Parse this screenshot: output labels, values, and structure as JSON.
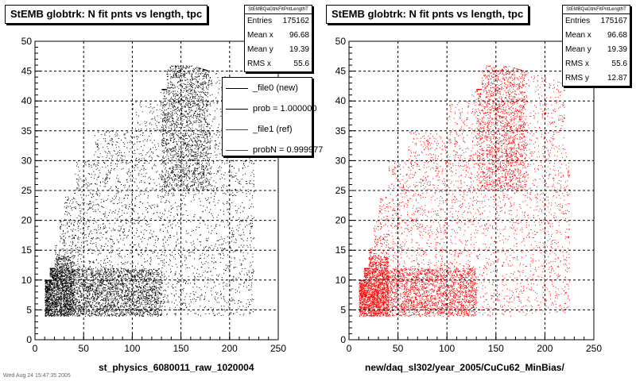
{
  "chart_data": [
    {
      "type": "scatter",
      "title": "StEMB globtrk: N fit pnts vs length, tpc",
      "xlabel": "st_physics_6080011_raw_1020004",
      "ylabel": "",
      "xlim": [
        0,
        250
      ],
      "ylim": [
        0,
        50
      ],
      "xticks": [
        "0",
        "50",
        "100",
        "150",
        "200",
        "250"
      ],
      "yticks": [
        "0",
        "5",
        "10",
        "15",
        "20",
        "25",
        "30",
        "35",
        "40",
        "45",
        "50"
      ],
      "grid": true,
      "color": "#000000",
      "stats": {
        "header": "StEMBQaGtrkFitPntLengthT",
        "rows": [
          {
            "label": "Entries",
            "value": "175162"
          },
          {
            "label": "Mean x",
            "value": "96.68"
          },
          {
            "label": "Mean y",
            "value": "19.39"
          },
          {
            "label": "RMS x",
            "value": "55.6"
          }
        ]
      },
      "legend": {
        "placement": "top-right",
        "entries": [
          {
            "label": "_file0 (new)",
            "color": "#000000"
          },
          {
            "label": "prob = 1.000000",
            "color": "#000000"
          },
          {
            "label": "_file1 (ref)",
            "color": "#ff0000"
          },
          {
            "label": "probN = 0.999977",
            "color": "#ff0000"
          }
        ]
      }
    },
    {
      "type": "scatter",
      "title": "StEMB globtrk: N fit pnts vs length, tpc",
      "xlabel": "new/daq_sl302/year_2005/CuCu62_MinBias/",
      "ylabel": "",
      "xlim": [
        0,
        250
      ],
      "ylim": [
        0,
        50
      ],
      "xticks": [
        "0",
        "50",
        "100",
        "150",
        "200",
        "250"
      ],
      "yticks": [
        "0",
        "5",
        "10",
        "15",
        "20",
        "25",
        "30",
        "35",
        "40",
        "45",
        "50"
      ],
      "grid": true,
      "color": "#ff0000",
      "stats": {
        "header": "StEMBQaGtrkFitPntLengthT",
        "rows": [
          {
            "label": "Entries",
            "value": "175167"
          },
          {
            "label": "Mean x",
            "value": "96.68"
          },
          {
            "label": "Mean y",
            "value": "19.39"
          },
          {
            "label": "RMS x",
            "value": "55.6"
          },
          {
            "label": "RMS y",
            "value": "12.87"
          }
        ]
      }
    }
  ],
  "footer": "Wed Aug 24 15:47:35 2005"
}
